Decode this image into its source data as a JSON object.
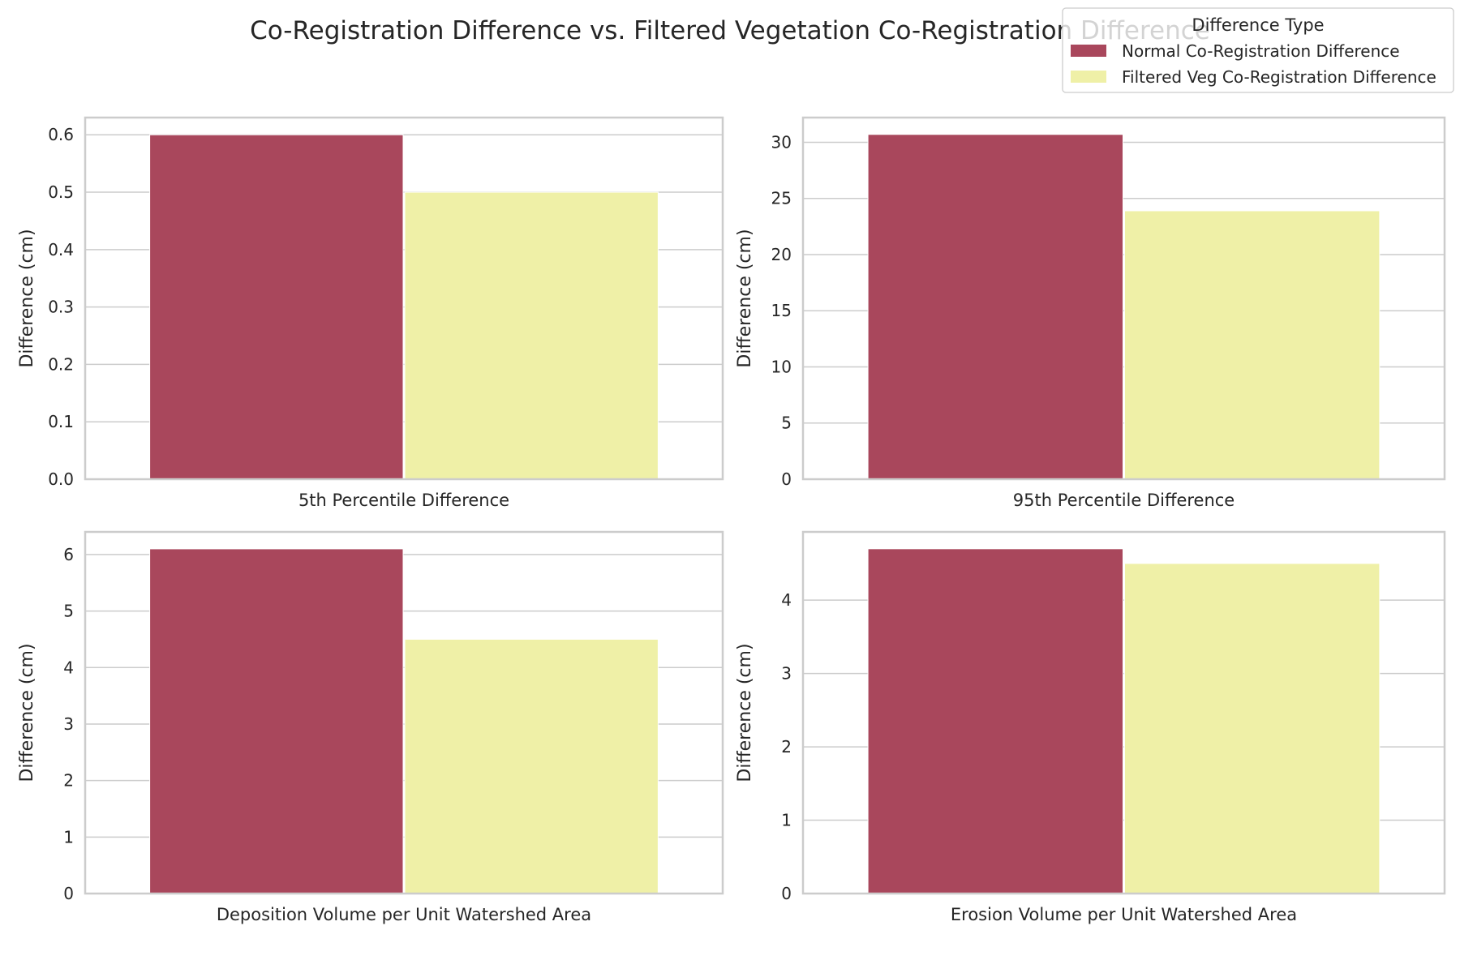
{
  "title": "Co-Registration Difference vs. Filtered Vegetation Co-Registration Difference",
  "legend": {
    "title": "Difference Type",
    "placement": "top-right",
    "entries": [
      {
        "name": "Normal Co-Registration Difference",
        "color": "#a9475c"
      },
      {
        "name": "Filtered Veg Co-Registration Difference",
        "color": "#eff0a7"
      }
    ]
  },
  "chart_data": [
    {
      "type": "bar",
      "categories": [
        "5th Percentile Difference"
      ],
      "series": [
        {
          "name": "Normal Co-Registration Difference",
          "values": [
            0.6
          ]
        },
        {
          "name": "Filtered Veg Co-Registration Difference",
          "values": [
            0.5
          ]
        }
      ],
      "ylabel": "Difference (cm)",
      "ylim": [
        0,
        0.63
      ],
      "yticks": [
        "0.0",
        "0.1",
        "0.2",
        "0.3",
        "0.4",
        "0.5",
        "0.6"
      ],
      "grid": true
    },
    {
      "type": "bar",
      "categories": [
        "95th Percentile Difference"
      ],
      "series": [
        {
          "name": "Normal Co-Registration Difference",
          "values": [
            30.7
          ]
        },
        {
          "name": "Filtered Veg Co-Registration Difference",
          "values": [
            23.9
          ]
        }
      ],
      "ylabel": "Difference (cm)",
      "ylim": [
        0,
        32.2
      ],
      "yticks": [
        "0",
        "5",
        "10",
        "15",
        "20",
        "25",
        "30"
      ],
      "grid": true
    },
    {
      "type": "bar",
      "categories": [
        "Deposition Volume per Unit Watershed Area"
      ],
      "series": [
        {
          "name": "Normal Co-Registration Difference",
          "values": [
            6.1
          ]
        },
        {
          "name": "Filtered Veg Co-Registration Difference",
          "values": [
            4.5
          ]
        }
      ],
      "ylabel": "Difference (cm)",
      "ylim": [
        0,
        6.4
      ],
      "yticks": [
        "0",
        "1",
        "2",
        "3",
        "4",
        "5",
        "6"
      ],
      "grid": true
    },
    {
      "type": "bar",
      "categories": [
        "Erosion Volume per Unit Watershed Area"
      ],
      "series": [
        {
          "name": "Normal Co-Registration Difference",
          "values": [
            4.7
          ]
        },
        {
          "name": "Filtered Veg Co-Registration Difference",
          "values": [
            4.5
          ]
        }
      ],
      "ylabel": "Difference (cm)",
      "ylim": [
        0,
        4.93
      ],
      "yticks": [
        "0",
        "1",
        "2",
        "3",
        "4"
      ],
      "grid": true
    }
  ]
}
